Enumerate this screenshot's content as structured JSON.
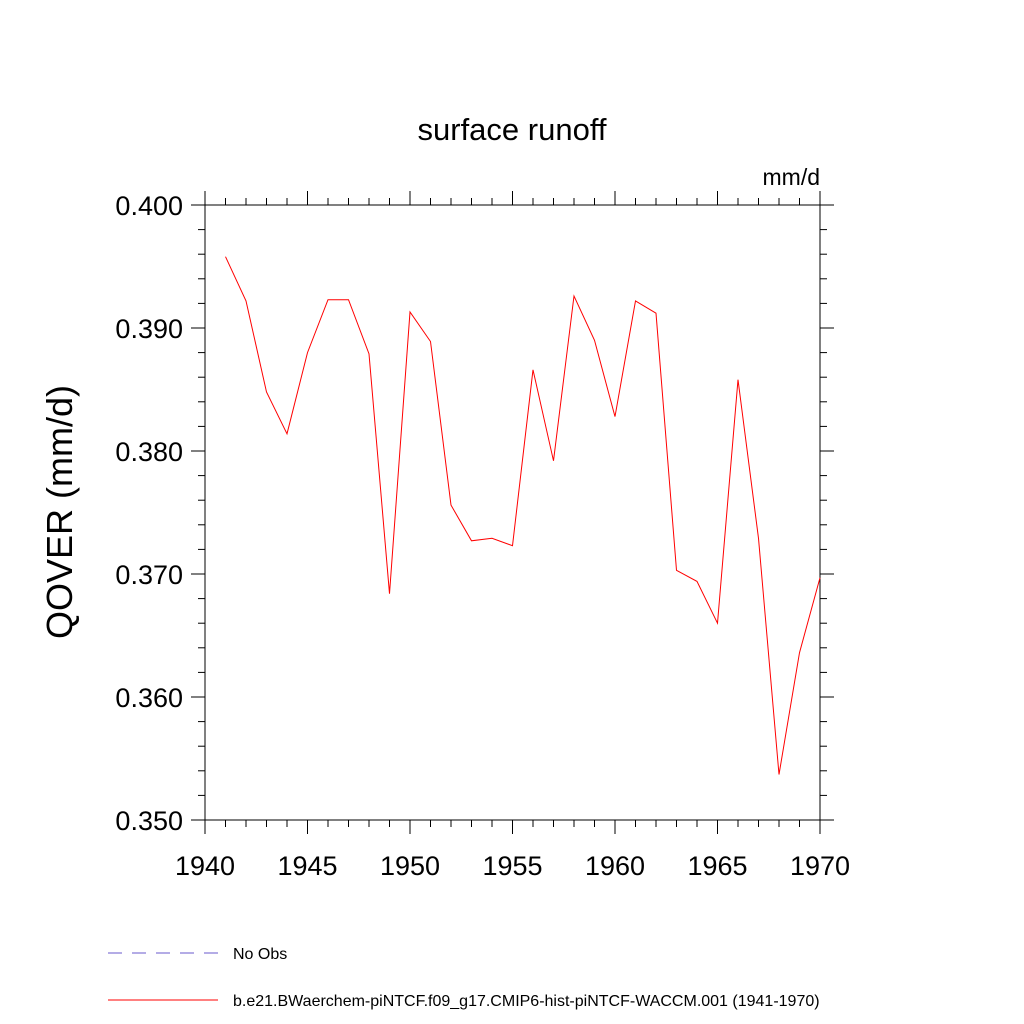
{
  "chart_data": {
    "type": "line",
    "title": "surface runoff",
    "units": "mm/d",
    "ylabel": "QOVER  (mm/d)",
    "xlabel": "",
    "xlim": [
      1940,
      1970
    ],
    "ylim": [
      0.35,
      0.4
    ],
    "x_ticks": [
      1940,
      1945,
      1950,
      1955,
      1960,
      1965,
      1970
    ],
    "x_tick_labels": [
      "1940",
      "1945",
      "1950",
      "1955",
      "1960",
      "1965",
      "1970"
    ],
    "y_ticks": [
      0.35,
      0.36,
      0.37,
      0.38,
      0.39,
      0.4
    ],
    "y_tick_labels": [
      "0.350",
      "0.360",
      "0.370",
      "0.380",
      "0.390",
      "0.400"
    ],
    "grid": false,
    "legend_position": "bottom-left",
    "series": [
      {
        "name": "b.e21.BWaerchem-piNTCF.f09_g17.CMIP6-hist-piNTCF-WACCM.001 (1941-1970)",
        "color": "#ff0000",
        "style": "solid",
        "x": [
          1941,
          1942,
          1943,
          1944,
          1945,
          1946,
          1947,
          1948,
          1949,
          1950,
          1951,
          1952,
          1953,
          1954,
          1955,
          1956,
          1957,
          1958,
          1959,
          1960,
          1961,
          1962,
          1963,
          1964,
          1965,
          1966,
          1967,
          1968,
          1969,
          1970
        ],
        "values": [
          0.3958,
          0.3922,
          0.3848,
          0.3814,
          0.388,
          0.3923,
          0.3923,
          0.3879,
          0.3684,
          0.3913,
          0.3889,
          0.3756,
          0.3727,
          0.3729,
          0.3723,
          0.3866,
          0.3792,
          0.3926,
          0.389,
          0.3828,
          0.3922,
          0.3912,
          0.3703,
          0.3694,
          0.366,
          0.3858,
          0.3729,
          0.3537,
          0.3636,
          0.3697
        ]
      }
    ],
    "legend": [
      {
        "label": "No Obs",
        "color": "#6a5acd",
        "style": "dashed"
      },
      {
        "label": "b.e21.BWaerchem-piNTCF.f09_g17.CMIP6-hist-piNTCF-WACCM.001 (1941-1970)",
        "color": "#ff0000",
        "style": "solid"
      }
    ]
  }
}
